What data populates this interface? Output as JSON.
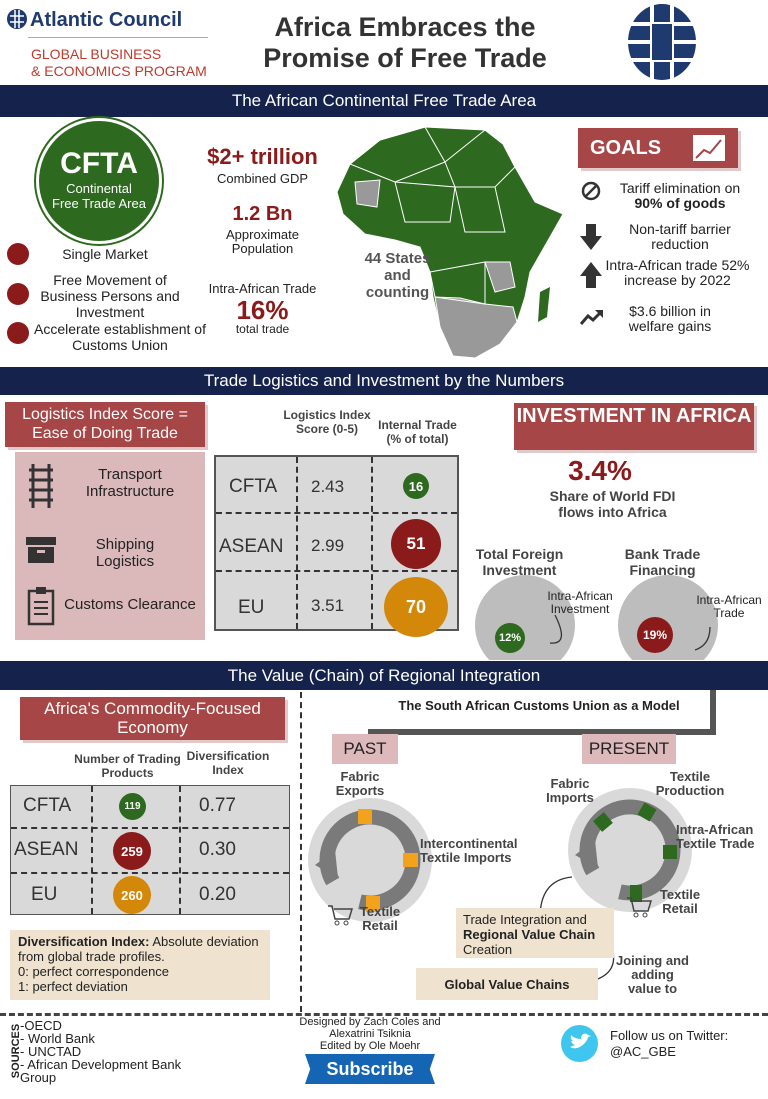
{
  "header": {
    "org_name": "Atlantic Council",
    "program_line1": "GLOBAL BUSINESS",
    "program_line2": "& ECONOMICS PROGRAM",
    "title_line1": "Africa Embraces the",
    "title_line2": "Promise of Free Trade"
  },
  "sections": [
    "The African Continental Free Trade Area",
    "Trade Logistics and Investment by the Numbers",
    "The Value (Chain) of Regional Integration"
  ],
  "cfta": {
    "acronym": "CFTA",
    "name_line1": "Continental",
    "name_line2": "Free Trade Area",
    "bullets": [
      "Single Market",
      "Free Movement of Business Persons and Investment",
      "Accelerate establishment of Customs Union"
    ]
  },
  "stats": {
    "gdp": "$2+ trillion",
    "gdp_label": "Combined GDP",
    "population": "1.2 Bn",
    "population_label": "Approximate Population",
    "trade_label": "Intra-African Trade",
    "trade_value": "16%",
    "trade_sub": "total trade",
    "states": "44 States and counting"
  },
  "goals": {
    "title": "GOALS",
    "items": [
      {
        "icon": "prohibited-icon",
        "text": "Tariff elimination on",
        "bold": "90% of goods"
      },
      {
        "icon": "arrow-down-icon",
        "text": "Non-tariff barrier reduction",
        "bold": ""
      },
      {
        "icon": "arrow-up-icon",
        "text": "Intra-African trade 52% increase  by 2022",
        "bold": ""
      },
      {
        "icon": "trend-up-icon",
        "text": "$3.6 billion in welfare gains",
        "bold": ""
      }
    ]
  },
  "logistics": {
    "title": "Logistics Index Score = Ease of Doing Trade",
    "items": [
      {
        "icon": "railway-icon",
        "label": "Transport Infrastructure"
      },
      {
        "icon": "box-icon",
        "label": "Shipping Logistics"
      },
      {
        "icon": "clipboard-icon",
        "label": "Customs Clearance"
      }
    ],
    "col1": "Logistics Index Score (0-5)",
    "col2": "Internal Trade (% of total)",
    "rows": [
      {
        "name": "CFTA",
        "score": "2.43",
        "internal": "16",
        "color": "#2d6a1f"
      },
      {
        "name": "ASEAN",
        "score": "2.99",
        "internal": "51",
        "color": "#8b1a1a"
      },
      {
        "name": "EU",
        "score": "3.51",
        "internal": "70",
        "color": "#d4880a"
      }
    ]
  },
  "investment": {
    "title": "INVESTMENT IN AFRICA",
    "share": "3.4%",
    "share_label": "Share of World FDI flows into Africa",
    "pies": [
      {
        "title": "Total Foreign Investment",
        "value": "12%",
        "fraction": 0.12,
        "label": "Intra-African Investment",
        "color": "#2d6a1f"
      },
      {
        "title": "Bank Trade Financing",
        "value": "19%",
        "fraction": 0.19,
        "label": "Intra-African Trade",
        "color": "#8b1a1a"
      }
    ]
  },
  "commodity": {
    "title": "Africa's Commodity-Focused Economy",
    "col1": "Number of Trading Products",
    "col2": "Diversification Index",
    "rows": [
      {
        "name": "CFTA",
        "products": "119",
        "index": "0.77",
        "color": "#2d6a1f"
      },
      {
        "name": "ASEAN",
        "products": "259",
        "index": "0.30",
        "color": "#8b1a1a"
      },
      {
        "name": "EU",
        "products": "260",
        "index": "0.20",
        "color": "#d4880a"
      }
    ],
    "note_bold": "Diversification Index:",
    "note": "Absolute deviation from global trade profiles.",
    "note_0": "0: perfect correspondence",
    "note_1": "1: perfect deviation"
  },
  "sacu": {
    "title": "The South African Customs Union as a Model",
    "past": "PAST",
    "present": "PRESENT",
    "past_labels": [
      "Fabric Exports",
      "Intercontinental Textile Imports",
      "Textile Retail"
    ],
    "present_labels": [
      "Fabric Imports",
      "Textile Production",
      "Intra-African Textile Trade",
      "Textile Retail"
    ],
    "integration_1": "Trade Integration and",
    "integration_bold": "Regional Value Chain",
    "integration_2": "Creation",
    "joining": "Joining and adding value to",
    "global": "Global Value Chains",
    "past_color": "#f2a31b",
    "present_color": "#2d6a1f"
  },
  "footer": {
    "sources_label": "SOURCES",
    "sources": [
      "-OECD",
      "- World Bank",
      "- UNCTAD",
      "- African Development Bank Group"
    ],
    "credits_1": "Designed by Zach Coles and",
    "credits_2": "Alexatrini Tsiknia",
    "credits_3": "Edited by Ole Moehr",
    "subscribe": "Subscribe",
    "twitter_1": "Follow us on Twitter:",
    "twitter_2": "@AC_GBE"
  }
}
